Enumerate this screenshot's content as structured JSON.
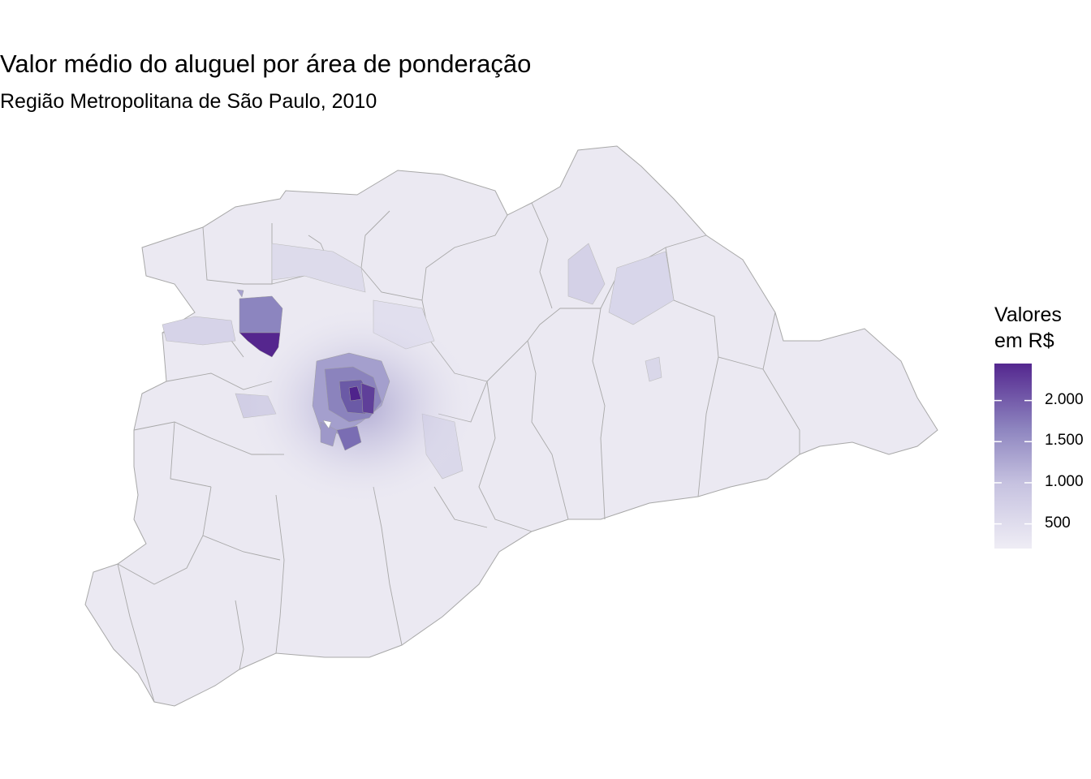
{
  "title": "Valor médio do aluguel por área de ponderação",
  "subtitle": "Região Metropolitana de São Paulo, 2010",
  "legend": {
    "title_line1": "Valores",
    "title_line2": "em R$",
    "ticks": [
      "2.000",
      "1.500",
      "1.000",
      "500"
    ],
    "tick_values": [
      2000,
      1500,
      1000,
      500
    ],
    "range": [
      200,
      2450
    ],
    "color_low": "#efedf5",
    "color_high": "#54278f"
  },
  "colors": {
    "region_border": "#a8a8a8",
    "base_fill": "#e9e7f1",
    "light_fill": "#edecf4",
    "mid_fill": "#d9d7ea",
    "mid2_fill": "#c4c1de",
    "dark_fill": "#8f88c0",
    "darkest_fill": "#5b2b93"
  }
}
